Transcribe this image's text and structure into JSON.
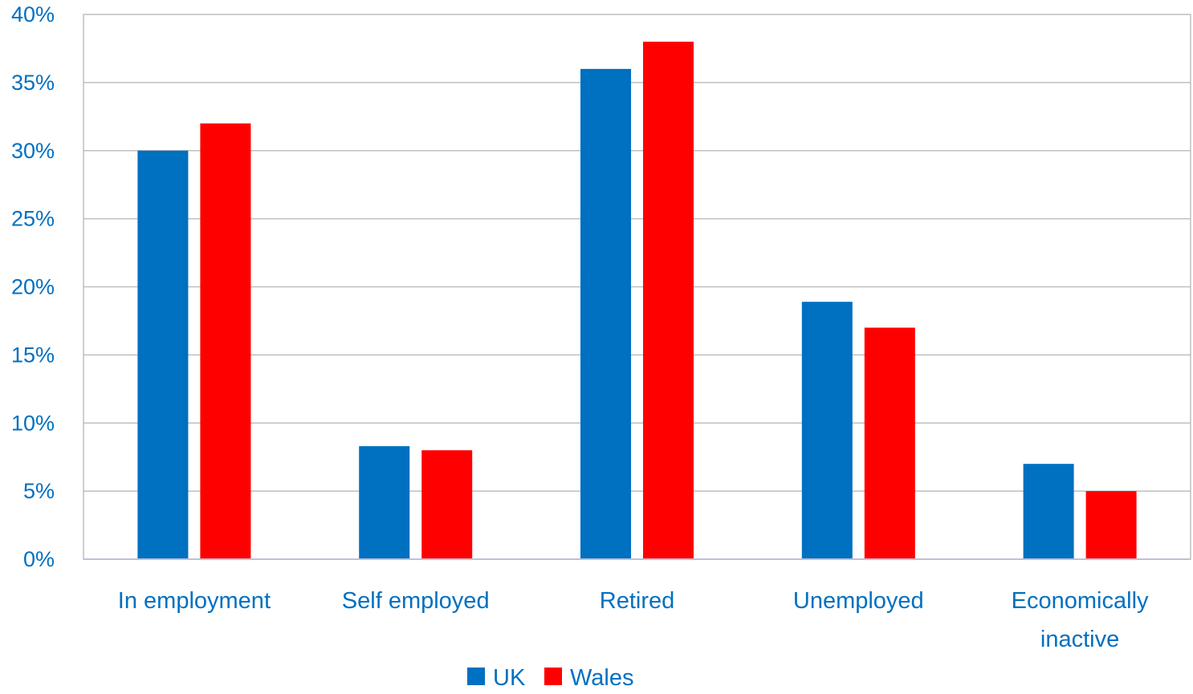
{
  "chart_data": {
    "type": "bar",
    "title": "",
    "xlabel": "",
    "ylabel": "",
    "categories": [
      [
        "In employment"
      ],
      [
        "Self employed"
      ],
      [
        "Retired"
      ],
      [
        "Unemployed"
      ],
      [
        "Economically",
        "inactive"
      ]
    ],
    "series": [
      {
        "name": "UK",
        "color": "#0070C0",
        "values": [
          30,
          8.3,
          36,
          18.9,
          7
        ]
      },
      {
        "name": "Wales",
        "color": "#FF0000",
        "values": [
          32,
          8,
          38,
          17,
          5
        ]
      }
    ],
    "ylim": [
      0,
      40
    ],
    "yticks": [
      0,
      5,
      10,
      15,
      20,
      25,
      30,
      35,
      40
    ],
    "ytick_suffix": "%",
    "grid": true,
    "legend_position": "bottom",
    "text_color": "#0070C0",
    "grid_color": "#BFBFBF",
    "axis_color": "#BFBFD8"
  }
}
